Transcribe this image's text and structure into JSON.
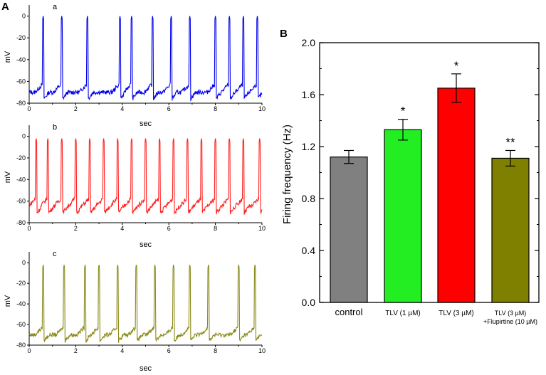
{
  "panel_a_label": "A",
  "panel_b_label": "B",
  "chart_data": [
    {
      "type": "line",
      "panel": "A-a",
      "trace_label": "a",
      "color": "#0000ee",
      "xlabel": "sec",
      "ylabel": "mV",
      "xlim": [
        0,
        10
      ],
      "ylim": [
        -80,
        5
      ],
      "x_ticks": [
        "0",
        "2",
        "4",
        "6",
        "8",
        "10"
      ],
      "y_ticks": [
        "0",
        "-20",
        "-40",
        "-60",
        "-80"
      ],
      "x_tick_values": [
        0,
        2,
        4,
        6,
        8,
        10
      ],
      "y_tick_values": [
        0,
        -20,
        -40,
        -60,
        -80
      ],
      "baseline_mv": -70,
      "peak_mv": 0,
      "spike_times_sec": [
        0.6,
        1.4,
        2.5,
        3.9,
        4.4,
        5.3,
        6.1,
        6.9,
        8.0,
        8.6,
        9.2,
        9.8
      ]
    },
    {
      "type": "line",
      "panel": "A-b",
      "trace_label": "b",
      "color": "#ff2020",
      "xlabel": "sec",
      "ylabel": "mV",
      "xlim": [
        0,
        10
      ],
      "ylim": [
        -80,
        5
      ],
      "x_ticks": [
        "0",
        "2",
        "4",
        "6",
        "8",
        "10"
      ],
      "y_ticks": [
        "0",
        "-20",
        "-40",
        "-60",
        "-80"
      ],
      "x_tick_values": [
        0,
        2,
        4,
        6,
        8,
        10
      ],
      "y_tick_values": [
        0,
        -20,
        -40,
        -60,
        -80
      ],
      "baseline_mv": -65,
      "peak_mv": -2,
      "spike_times_sec": [
        0.3,
        0.8,
        1.4,
        2.0,
        2.6,
        3.2,
        3.8,
        4.4,
        5.0,
        5.6,
        6.2,
        6.8,
        7.4,
        8.0,
        8.6,
        9.2,
        9.9
      ]
    },
    {
      "type": "line",
      "panel": "A-c",
      "trace_label": "c",
      "color": "#8a8a18",
      "xlabel": "sec",
      "ylabel": "mV",
      "xlim": [
        0,
        10
      ],
      "ylim": [
        -80,
        5
      ],
      "x_ticks": [
        "0",
        "2",
        "4",
        "6",
        "8",
        "10"
      ],
      "y_ticks": [
        "0",
        "-20",
        "-40",
        "-60",
        "-80"
      ],
      "x_tick_values": [
        0,
        2,
        4,
        6,
        8,
        10
      ],
      "y_tick_values": [
        0,
        -20,
        -40,
        -60,
        -80
      ],
      "baseline_mv": -70,
      "peak_mv": -2,
      "spike_times_sec": [
        0.6,
        1.5,
        2.4,
        3.0,
        3.8,
        4.6,
        5.4,
        6.2,
        6.9,
        7.7,
        9.0,
        9.7
      ]
    },
    {
      "type": "bar",
      "panel": "B",
      "ylabel": "Firing frequency (Hz)",
      "ylim": [
        0,
        2.0
      ],
      "y_ticks": [
        "0.0",
        "0.4",
        "0.8",
        "1.2",
        "1.6",
        "2.0"
      ],
      "y_tick_values": [
        0.0,
        0.4,
        0.8,
        1.2,
        1.6,
        2.0
      ],
      "categories": [
        "control",
        "TLV (1 µM)",
        "TLV (3 µM)",
        "TLV (3 µM)"
      ],
      "category_sublabels": [
        "",
        "",
        "",
        "+Flupirtine (10 µM)"
      ],
      "values": [
        1.12,
        1.33,
        1.65,
        1.11
      ],
      "errors": [
        0.05,
        0.08,
        0.11,
        0.06
      ],
      "colors": [
        "#808080",
        "#22ee22",
        "#ff0000",
        "#7f7f00"
      ],
      "significance": [
        "",
        "*",
        "*",
        "**"
      ]
    }
  ]
}
